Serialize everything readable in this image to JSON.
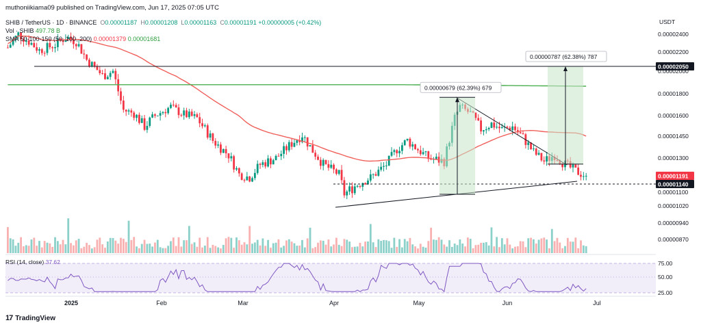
{
  "header": {
    "publisher": "muthoniikiama09 published on TradingView.com, Jun 17, 2025 07:05 UTC",
    "symbol": "SHIB / TetherUS · 1D · BINANCE",
    "ohlc": {
      "o": "0.00001187",
      "h": "0.00001208",
      "l": "0.00001163",
      "c": "0.00001191",
      "change": "+0.00000005 (+0.42%)"
    },
    "volume_label": "Vol · SHIB",
    "volume_value": "497.78 B",
    "sma_label": "SMA 50-100-150 (50, 100, 200)",
    "sma_values": [
      "0.00001379",
      "0.00001681"
    ],
    "rsi_label": "RSI (14, close)",
    "rsi_value": "37.62",
    "currency": "USDT",
    "brand": "TradingView",
    "brand_logo": "17"
  },
  "chart_data": {
    "type": "candlestick",
    "y_axis_ticks": [
      "0.00002400",
      "0.00002200",
      "0.00002000",
      "0.00001800",
      "0.00001600",
      "0.00001450",
      "0.00001300",
      "0.00001191",
      "0.00001140",
      "0.00001100",
      "0.00001020",
      "0.00000940",
      "0.00000870"
    ],
    "price_tags": [
      {
        "label": "0.00002050",
        "value": 2.05e-05,
        "style": "dark"
      },
      {
        "label": "0.00001191",
        "value": 1.191e-05,
        "style": "red"
      },
      {
        "label": "0.00001140",
        "value": 1.14e-05,
        "style": "dark"
      }
    ],
    "x_axis_labels": [
      "2025",
      "Feb",
      "Mar",
      "Apr",
      "May",
      "Jun",
      "Jul"
    ],
    "rsi_axis_ticks": [
      "75.00",
      "50.00",
      "25.00"
    ],
    "rsi_range": [
      25,
      75
    ],
    "horizontal_levels": [
      {
        "value": 2.05e-05,
        "style": "solid"
      },
      {
        "value": 1.14e-05,
        "style": "dashed"
      }
    ],
    "measurements": [
      {
        "label": "0.00000679 (62.39%) 679",
        "from": 1.088e-05,
        "to": 1.767e-05
      },
      {
        "label": "0.00000787 (62.38%) 787",
        "from": 1.263e-05,
        "to": 2.05e-05
      }
    ],
    "colors": {
      "up": "#089981",
      "down": "#f23645",
      "sma50": "#f0605b",
      "sma200": "#4caf50",
      "rsi": "#7e57c2",
      "measure_fill": "#c8e6c9"
    }
  }
}
